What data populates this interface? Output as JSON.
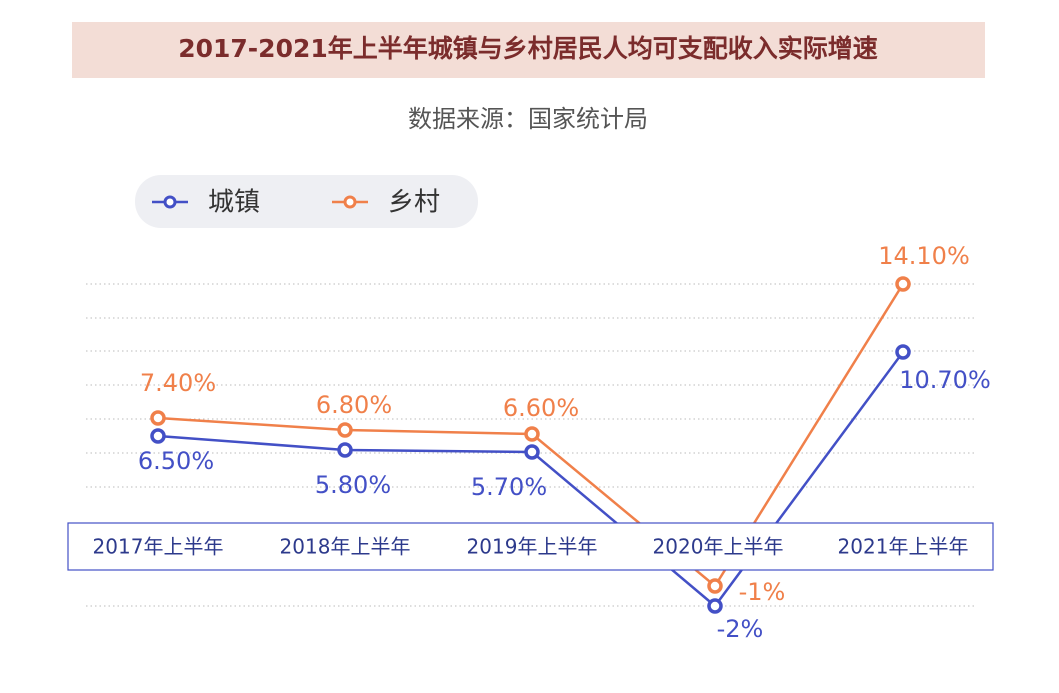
{
  "chart_data": {
    "type": "line",
    "title": "2017-2021年上半年城镇与乡村居民人均可支配收入实际增速",
    "subtitle": "数据来源：国家统计局",
    "categories": [
      "2017年上半年",
      "2018年上半年",
      "2019年上半年",
      "2020年上半年",
      "2021年上半年"
    ],
    "series": [
      {
        "name": "城镇",
        "color": "#4350c6",
        "values": [
          6.5,
          5.8,
          5.7,
          -2,
          10.7
        ],
        "value_labels": [
          "6.50%",
          "5.80%",
          "5.70%",
          "-2%",
          "10.70%"
        ]
      },
      {
        "name": "乡村",
        "color": "#f0804a",
        "values": [
          7.4,
          6.8,
          6.6,
          -1,
          14.1
        ],
        "value_labels": [
          "7.40%",
          "6.80%",
          "6.60%",
          "-1%",
          "14.10%"
        ]
      }
    ],
    "ylim": [
      -2.5,
      15.5
    ]
  }
}
